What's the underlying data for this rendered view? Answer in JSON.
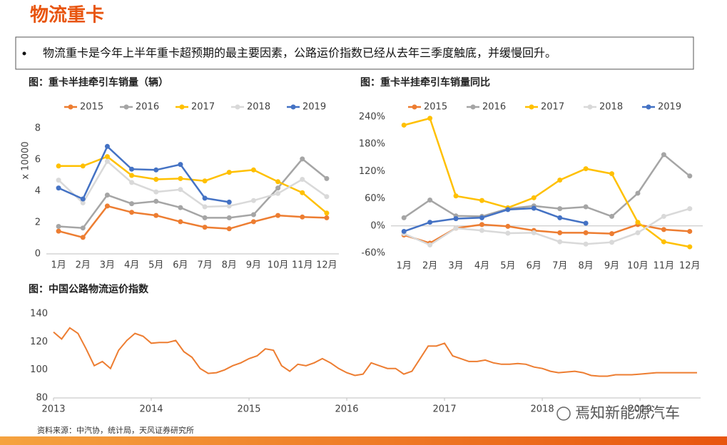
{
  "title": "物流重卡",
  "bullet": "物流重卡是今年上半年重卡超预期的最主要因素，公路运价指数已经从去年三季度触底，并缓慢回升。",
  "source": "资料来源：中汽协，统计局，天风证券研究所",
  "watermark": "焉知新能源汽车",
  "chart_data": [
    {
      "type": "line",
      "title": "图：重卡半挂牵引车销量（辆）",
      "y_label": "x 10000",
      "categories": [
        "1月",
        "2月",
        "3月",
        "4月",
        "5月",
        "6月",
        "7月",
        "8月",
        "9月",
        "10月",
        "11月",
        "12月"
      ],
      "ylim": [
        0,
        8
      ],
      "yticks": [
        0,
        2,
        4,
        6,
        8
      ],
      "grid": false,
      "legend": "top",
      "series": [
        {
          "name": "2015",
          "color": "#ed7d31",
          "values": [
            1.45,
            1.05,
            3.05,
            2.65,
            2.45,
            2.05,
            1.7,
            1.6,
            2.05,
            2.45,
            2.35,
            2.3
          ]
        },
        {
          "name": "2016",
          "color": "#a5a5a5",
          "values": [
            1.75,
            1.65,
            3.75,
            3.2,
            3.35,
            2.95,
            2.3,
            2.3,
            2.5,
            4.2,
            6.05,
            4.8
          ]
        },
        {
          "name": "2017",
          "color": "#ffc000",
          "values": [
            5.6,
            5.6,
            6.2,
            5.0,
            4.75,
            4.8,
            4.65,
            5.2,
            5.35,
            4.6,
            3.9,
            2.6
          ]
        },
        {
          "name": "2018",
          "color": "#d9d9d9",
          "values": [
            4.7,
            3.25,
            5.9,
            4.55,
            3.95,
            4.1,
            3.0,
            3.05,
            3.4,
            3.85,
            4.75,
            3.65
          ]
        },
        {
          "name": "2019",
          "color": "#4472c4",
          "values": [
            4.2,
            3.5,
            6.85,
            5.4,
            5.35,
            5.7,
            3.55,
            3.3,
            null,
            null,
            null,
            null
          ]
        }
      ]
    },
    {
      "type": "line",
      "title": "图：重卡半挂牵引车销量同比",
      "categories": [
        "1月",
        "2月",
        "3月",
        "4月",
        "5月",
        "6月",
        "7月",
        "8月",
        "9月",
        "10月",
        "11月",
        "12月"
      ],
      "ylim": [
        -60,
        240
      ],
      "yticks": [
        {
          "value": -60,
          "label": "-60%"
        },
        {
          "value": 0,
          "label": "0%"
        },
        {
          "value": 60,
          "label": "60%"
        },
        {
          "value": 120,
          "label": "120%"
        },
        {
          "value": 180,
          "label": "180%"
        },
        {
          "value": 240,
          "label": "240%"
        }
      ],
      "grid": false,
      "legend": "top",
      "series": [
        {
          "name": "2015",
          "color": "#ed7d31",
          "values": [
            -20,
            -38,
            -5,
            3,
            -1,
            -10,
            -15,
            -15,
            -17,
            3,
            -8,
            -12
          ]
        },
        {
          "name": "2016",
          "color": "#a5a5a5",
          "values": [
            18,
            57,
            22,
            21,
            38,
            44,
            38,
            42,
            21,
            72,
            157,
            110
          ]
        },
        {
          "name": "2017",
          "color": "#ffc000",
          "values": [
            222,
            237,
            66,
            56,
            40,
            62,
            101,
            126,
            115,
            8,
            -35,
            -46
          ]
        },
        {
          "name": "2018",
          "color": "#d9d9d9",
          "values": [
            -17,
            -42,
            -5,
            -10,
            -16,
            -15,
            -35,
            -40,
            -36,
            -15,
            21,
            38
          ]
        },
        {
          "name": "2019",
          "color": "#4472c4",
          "values": [
            -12,
            8,
            16,
            18,
            36,
            39,
            18,
            6,
            null,
            null,
            null,
            null
          ]
        }
      ]
    },
    {
      "type": "line",
      "title": "图：中国公路物流运价指数",
      "color": "#ed7d31",
      "ylim": [
        80,
        140
      ],
      "yticks": [
        80,
        100,
        120,
        140
      ],
      "grid": false,
      "categories": [
        "2013",
        null,
        null,
        null,
        null,
        null,
        null,
        null,
        null,
        null,
        null,
        null,
        "2014",
        null,
        null,
        null,
        null,
        null,
        null,
        null,
        null,
        null,
        null,
        null,
        "2015",
        null,
        null,
        null,
        null,
        null,
        null,
        null,
        null,
        null,
        null,
        null,
        "2016",
        null,
        null,
        null,
        null,
        null,
        null,
        null,
        null,
        null,
        null,
        null,
        "2017",
        null,
        null,
        null,
        null,
        null,
        null,
        null,
        null,
        null,
        null,
        null,
        "2018",
        null,
        null,
        null,
        null,
        null,
        null,
        null,
        null,
        null,
        null,
        null,
        "2019",
        null,
        null,
        null,
        null,
        null,
        null,
        null
      ],
      "values": [
        127,
        122,
        130,
        126,
        115,
        103,
        106,
        101,
        114,
        121,
        126,
        124,
        119,
        119.5,
        119.5,
        121,
        113,
        109,
        101,
        97.5,
        98,
        100,
        103,
        105,
        108,
        110,
        115,
        114,
        103,
        99,
        104,
        103,
        105,
        108,
        105,
        101,
        98,
        96,
        97,
        105,
        103,
        101,
        101,
        97,
        99,
        108,
        117,
        117,
        119,
        110,
        108,
        106,
        106,
        107,
        105,
        104,
        104,
        104.5,
        104,
        102,
        101,
        99,
        98,
        98.5,
        99,
        98,
        96,
        95.5,
        95.5,
        96.5,
        96.5,
        96.5,
        97,
        97.5,
        98,
        98,
        98,
        98,
        98,
        98
      ]
    }
  ]
}
